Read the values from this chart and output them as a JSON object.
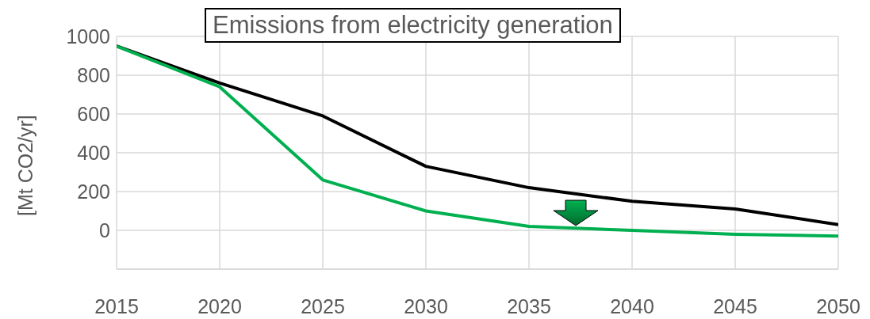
{
  "chart_data": {
    "type": "line",
    "title": "Emissions from electricity generation",
    "ylabel": "[Mt CO2/yr]",
    "x": [
      2015,
      2020,
      2025,
      2030,
      2035,
      2040,
      2045,
      2050
    ],
    "series": [
      {
        "color": "#000000",
        "values": [
          950,
          760,
          590,
          330,
          220,
          150,
          110,
          30
        ]
      },
      {
        "color": "#00b050",
        "values": [
          950,
          740,
          260,
          100,
          20,
          0,
          -20,
          -30
        ]
      }
    ],
    "xlim": [
      2015,
      2050
    ],
    "xticks": [
      2015,
      2020,
      2025,
      2030,
      2035,
      2040,
      2045,
      2050
    ],
    "ylim": [
      -200,
      1000
    ],
    "yticks": [
      {
        "value": -200,
        "label": null
      },
      0,
      200,
      400,
      600,
      800,
      1000
    ],
    "grid": true,
    "marker": "none",
    "line_style": "solid"
  }
}
